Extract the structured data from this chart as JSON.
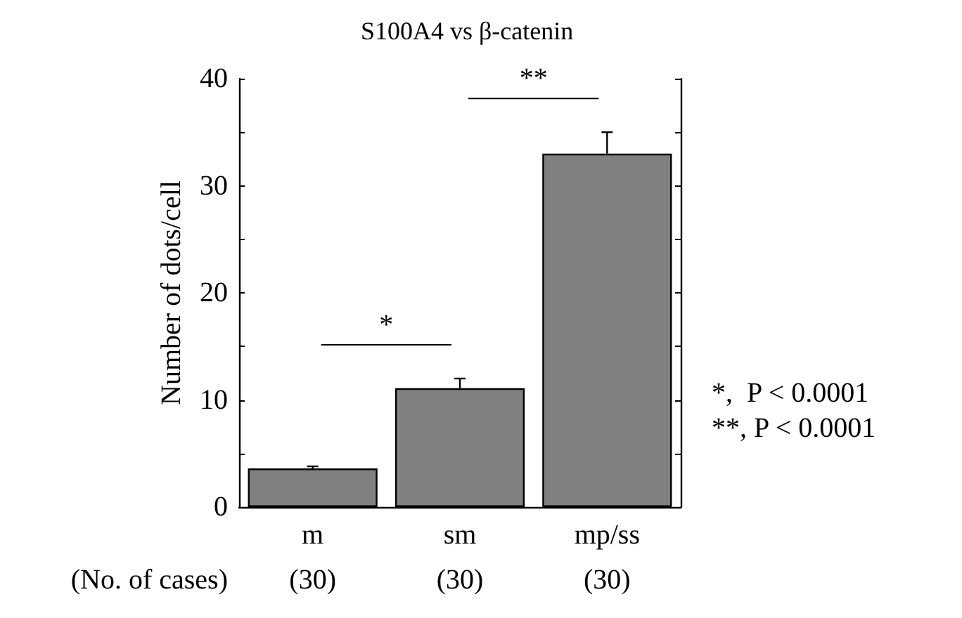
{
  "chart_data": {
    "type": "bar",
    "title": "S100A4 vs β-catenin",
    "ylabel": "Number of dots/cell",
    "categories": [
      "m",
      "sm",
      "mp/ss"
    ],
    "values": [
      3.6,
      11.1,
      33
    ],
    "errors": [
      [
        3.6,
        3.8
      ],
      [
        11.1,
        12
      ],
      [
        33,
        35
      ]
    ],
    "color": "#808080",
    "ylim": [
      0,
      40
    ],
    "yticks": [
      0,
      {
        "value": 5,
        "label": null
      },
      10,
      {
        "value": 15,
        "label": null
      },
      20,
      {
        "value": 25,
        "label": null
      },
      30,
      {
        "value": 35,
        "label": null
      },
      40
    ],
    "annotations": [
      "*",
      "**",
      "*,  P < 0.0001",
      "**, P < 0.0001",
      "(No. of cases)",
      "(30)",
      "(30)",
      "(30)"
    ]
  }
}
